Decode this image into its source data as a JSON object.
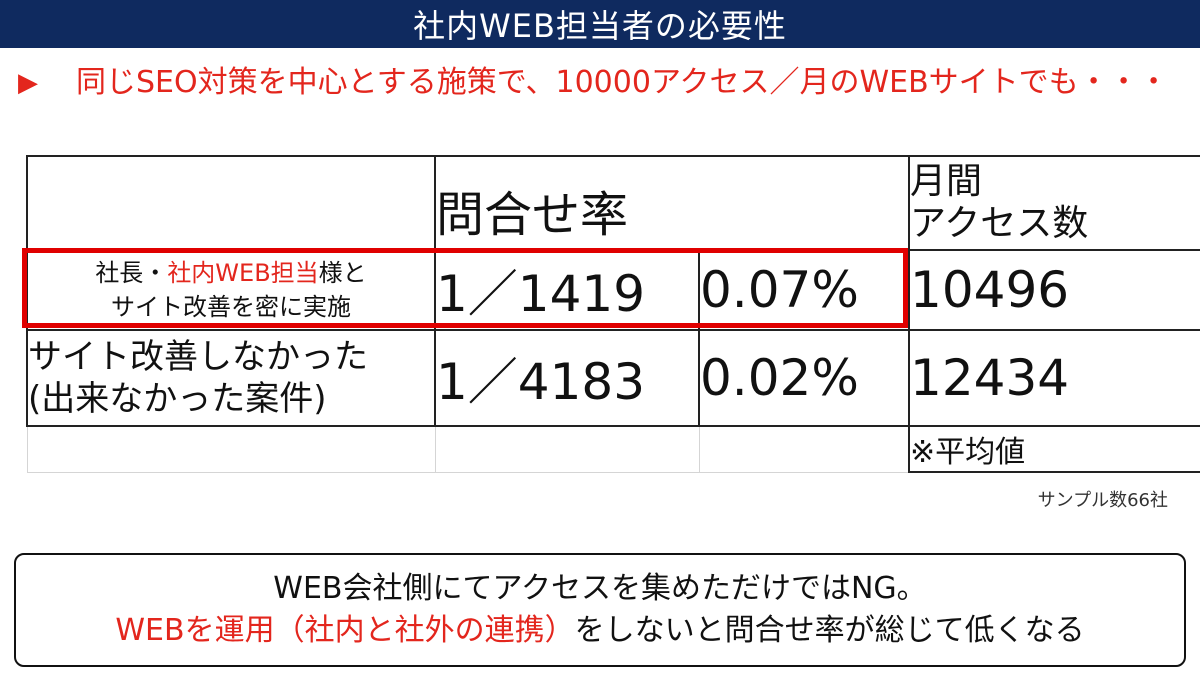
{
  "title": "社内WEB担当者の必要性",
  "lead": {
    "bullet": "▶",
    "text": "同じSEO対策を中心とする施策で、10000アクセス／月のWEBサイトでも・・・"
  },
  "table": {
    "header": {
      "inquiry_rate": "問合せ率",
      "monthly_access_line1": "月間",
      "monthly_access_line2": "アクセス数"
    },
    "row1": {
      "label_prefix": "社長・",
      "label_red": "社内WEB担当",
      "label_suffix": "様と",
      "label_line2": "サイト改善を密に実施",
      "ratio": "1／1419",
      "percent": "0.07%",
      "access": "10496"
    },
    "row2": {
      "label_line1": "サイト改善しなかった",
      "label_line2": "(出来なかった案件)",
      "ratio": "1／4183",
      "percent": "0.02%",
      "access": "12434"
    },
    "note": "※平均値"
  },
  "sample_count": "サンプル数66社",
  "callout": {
    "line1": "WEB会社側にてアクセスを集めただけではNG。",
    "line2_red": "WEBを運用（社内と社外の連携）",
    "line2_rest": "をしないと問合せ率が総じて低くなる"
  },
  "colors": {
    "title_bar": "#0f2a5f",
    "accent_red": "#e3261d",
    "highlight_border": "#e00000"
  }
}
